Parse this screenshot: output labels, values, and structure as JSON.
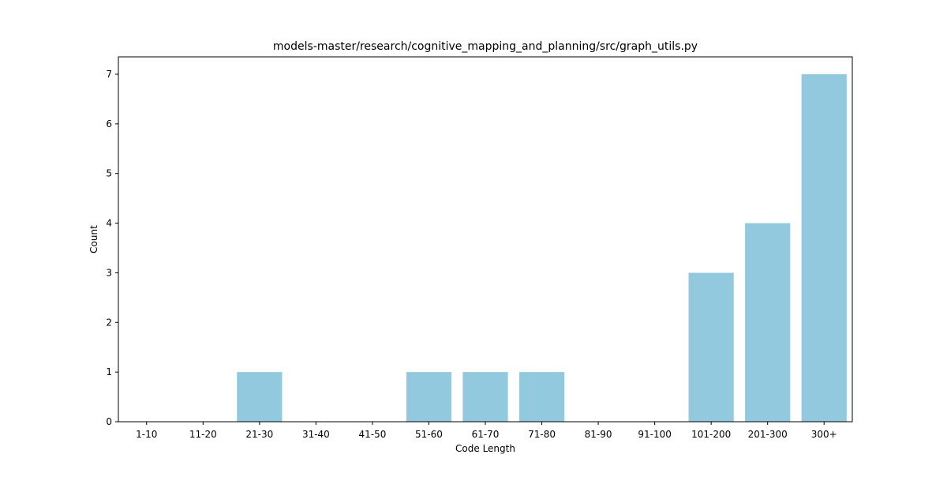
{
  "chart_data": {
    "type": "bar",
    "title": "models-master/research/cognitive_mapping_and_planning/src/graph_utils.py",
    "xlabel": "Code Length",
    "ylabel": "Count",
    "categories": [
      "1-10",
      "11-20",
      "21-30",
      "31-40",
      "41-50",
      "51-60",
      "61-70",
      "71-80",
      "81-90",
      "91-100",
      "101-200",
      "201-300",
      "300+"
    ],
    "values": [
      0,
      0,
      1,
      0,
      0,
      1,
      1,
      1,
      0,
      0,
      3,
      4,
      7
    ],
    "yticks": [
      0,
      1,
      2,
      3,
      4,
      5,
      6,
      7
    ],
    "ylim": [
      0,
      7.35
    ],
    "bar_color": "#92c9df",
    "grid": false,
    "legend": "none"
  }
}
